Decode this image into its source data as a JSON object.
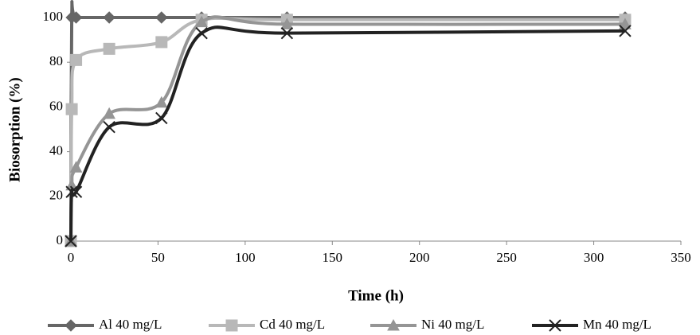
{
  "chart_data": {
    "type": "line",
    "x_label": "Time (h)",
    "y_label": "Biosorption (%)",
    "x": [
      0,
      0.5,
      3,
      22,
      52,
      75,
      124,
      318
    ],
    "series": [
      {
        "name": "Al 40 mg/L",
        "color": "#666666",
        "marker": "diamond",
        "values": [
          0,
          100,
          100,
          100,
          100,
          100,
          100,
          100
        ]
      },
      {
        "name": "Cd 40 mg/L",
        "color": "#b8b8b8",
        "marker": "square",
        "values": [
          0,
          59,
          81,
          86,
          89,
          99,
          99,
          99
        ]
      },
      {
        "name": "Ni 40 mg/L",
        "color": "#959595",
        "marker": "triangle",
        "values": [
          0,
          25,
          33,
          57,
          62,
          98,
          97,
          97
        ]
      },
      {
        "name": "Mn 40 mg/L",
        "color": "#222222",
        "marker": "x",
        "values": [
          0,
          22,
          22,
          51,
          55,
          93,
          93,
          94
        ]
      }
    ],
    "xlim": [
      0,
      350
    ],
    "xticks": [
      0,
      50,
      100,
      150,
      200,
      250,
      300,
      350
    ],
    "ylim": [
      0,
      100
    ],
    "yticks": [
      0,
      20,
      40,
      60,
      80,
      100
    ],
    "legend": "bottom"
  }
}
